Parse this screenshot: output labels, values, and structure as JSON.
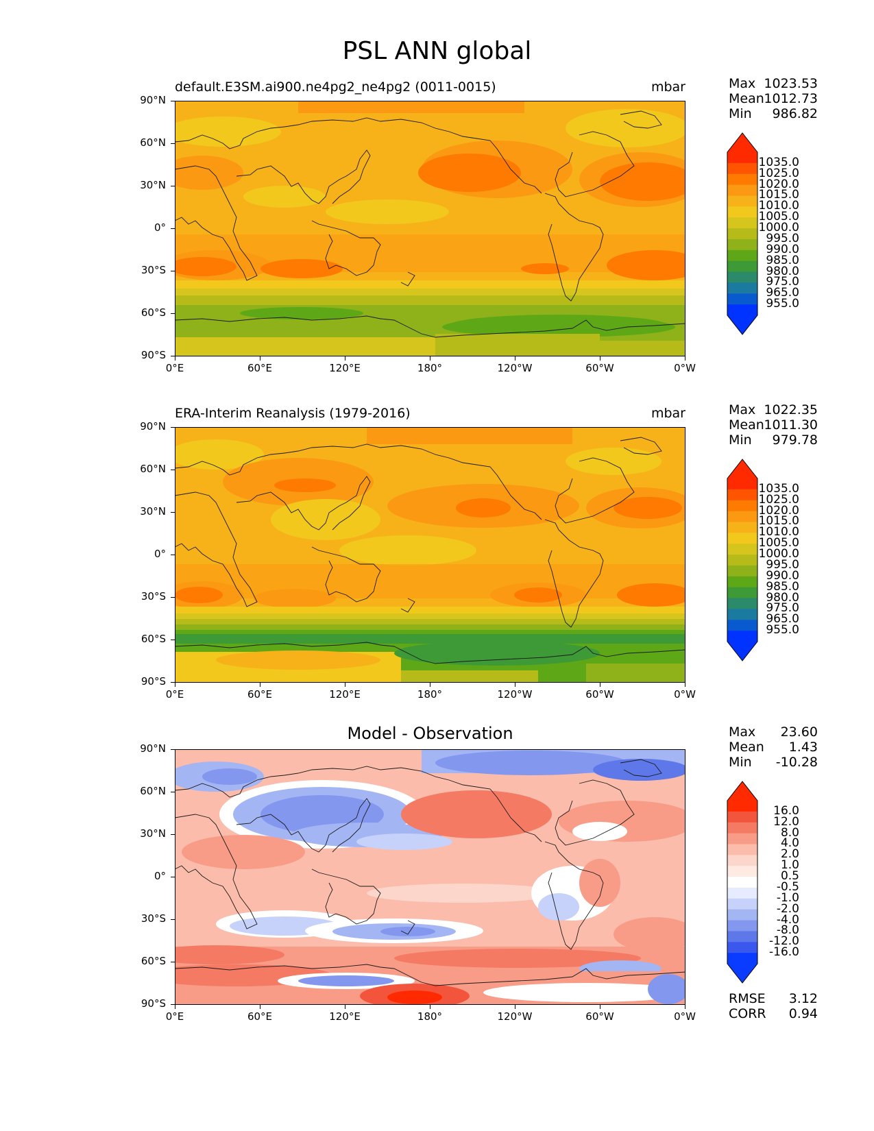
{
  "figure_title": "PSL ANN global",
  "lat_labels": [
    "90°N",
    "60°N",
    "30°N",
    "0°",
    "30°S",
    "60°S",
    "90°S"
  ],
  "lon_labels": [
    "0°E",
    "60°E",
    "120°E",
    "180°",
    "120°W",
    "60°W",
    "0°W"
  ],
  "panels": [
    {
      "title": "default.E3SM.ai900.ne4pg2_ne4pg2 (0011-0015)",
      "units": "mbar",
      "stats": {
        "max_label": "Max",
        "max": "1023.53",
        "mean_label": "Mean",
        "mean": "1012.73",
        "min_label": "Min",
        "min": "986.82"
      },
      "colorbar_labels": [
        "1035.0",
        "1025.0",
        "1020.0",
        "1015.0",
        "1010.0",
        "1005.0",
        "1000.0",
        "995.0",
        "990.0",
        "985.0",
        "980.0",
        "975.0",
        "965.0",
        "955.0"
      ]
    },
    {
      "title": "ERA-Interim Reanalysis (1979-2016)",
      "units": "mbar",
      "stats": {
        "max_label": "Max",
        "max": "1022.35",
        "mean_label": "Mean",
        "mean": "1011.30",
        "min_label": "Min",
        "min": "979.78"
      },
      "colorbar_labels": [
        "1035.0",
        "1025.0",
        "1020.0",
        "1015.0",
        "1010.0",
        "1005.0",
        "1000.0",
        "995.0",
        "990.0",
        "985.0",
        "980.0",
        "975.0",
        "965.0",
        "955.0"
      ]
    },
    {
      "title": "Model - Observation",
      "stats": {
        "max_label": "Max",
        "max": "23.60",
        "mean_label": "Mean",
        "mean": "1.43",
        "min_label": "Min",
        "min": "-10.28"
      },
      "colorbar_labels": [
        "16.0",
        "12.0",
        "8.0",
        "4.0",
        "2.0",
        "1.0",
        "0.5",
        "-0.5",
        "-1.0",
        "-2.0",
        "-4.0",
        "-8.0",
        "-12.0",
        "-16.0"
      ],
      "rmse_label": "RMSE",
      "rmse": "3.12",
      "corr_label": "CORR",
      "corr": "0.94"
    }
  ],
  "colors": {
    "psl": [
      "#ff2a00",
      "#ff5500",
      "#ff7a00",
      "#fb9a12",
      "#f7b21a",
      "#f2c81d",
      "#d6c51d",
      "#b6bb1a",
      "#8fb21a",
      "#5ea817",
      "#3e9a37",
      "#2a8a6a",
      "#1a7aa0",
      "#0a5acf",
      "#0033ff"
    ],
    "diff": [
      "#ff2a00",
      "#f2553c",
      "#f57a64",
      "#f89c88",
      "#fbbcab",
      "#fdd6cb",
      "#ffeae3",
      "#ffffff",
      "#e6ebff",
      "#c6d2fa",
      "#a4b5f4",
      "#8397ee",
      "#5e78ea",
      "#3a58ee",
      "#0a3cff"
    ]
  }
}
